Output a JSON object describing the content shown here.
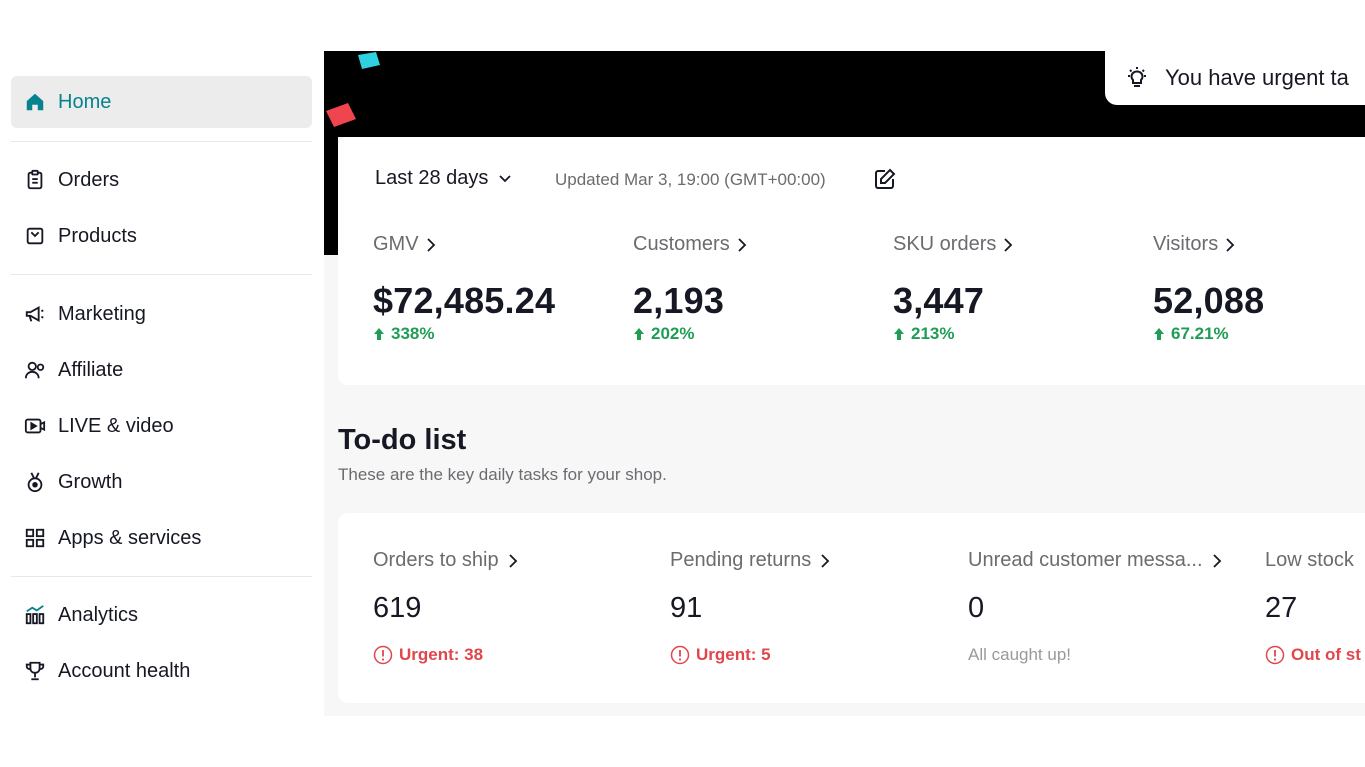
{
  "sidebar": {
    "items": [
      {
        "label": "Home",
        "icon": "home-icon"
      },
      {
        "label": "Orders",
        "icon": "clipboard-icon"
      },
      {
        "label": "Products",
        "icon": "product-box-icon"
      },
      {
        "label": "Marketing",
        "icon": "megaphone-icon"
      },
      {
        "label": "Affiliate",
        "icon": "people-icon"
      },
      {
        "label": "LIVE & video",
        "icon": "video-icon"
      },
      {
        "label": "Growth",
        "icon": "medal-icon"
      },
      {
        "label": "Apps & services",
        "icon": "apps-grid-icon"
      },
      {
        "label": "Analytics",
        "icon": "bar-chart-icon"
      },
      {
        "label": "Account health",
        "icon": "trophy-icon"
      }
    ]
  },
  "banner": {
    "urgent_text": "You have urgent ta"
  },
  "stats": {
    "period": "Last 28 days",
    "updated": "Updated Mar 3, 19:00 (GMT+00:00)",
    "metrics": [
      {
        "label": "GMV",
        "value": "$72,485.24",
        "change": "338%"
      },
      {
        "label": "Customers",
        "value": "2,193",
        "change": "202%"
      },
      {
        "label": "SKU orders",
        "value": "3,447",
        "change": "213%"
      },
      {
        "label": "Visitors",
        "value": "52,088",
        "change": "67.21%"
      }
    ]
  },
  "todo": {
    "title": "To-do list",
    "subtitle": "These are the key daily tasks for your shop.",
    "tasks": [
      {
        "label": "Orders to ship",
        "value": "619",
        "status": "Urgent: 38"
      },
      {
        "label": "Pending returns",
        "value": "91",
        "status": "Urgent: 5"
      },
      {
        "label": "Unread customer messa...",
        "value": "0",
        "status": "All caught up!"
      },
      {
        "label": "Low stock",
        "value": "27",
        "status": "Out of st"
      }
    ]
  },
  "colors": {
    "accent": "#06838f",
    "positive": "#1f9d55",
    "urgent": "#e1464d",
    "banner": "#000000"
  }
}
